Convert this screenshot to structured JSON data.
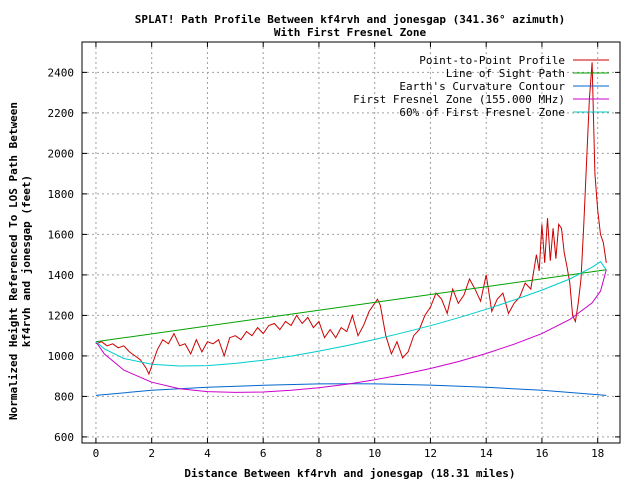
{
  "chart_data": {
    "type": "line",
    "title": "SPLAT! Path Profile Between kf4rvh and jonesgap (341.36° azimuth)",
    "subtitle": "With First Fresnel Zone",
    "xlabel": "Distance Between kf4rvh and jonesgap (18.31 miles)",
    "ylabel": "Normalized Height Referenced To LOS Path Between",
    "ylabel2": "kf4rvh and jonesgap (feet)",
    "xlim": [
      -0.5,
      18.8
    ],
    "ylim": [
      570,
      2550
    ],
    "x_ticks": [
      "0",
      "2",
      "4",
      "6",
      "8",
      "10",
      "12",
      "14",
      "16",
      "18"
    ],
    "y_ticks": [
      "600",
      "800",
      "1000",
      "1200",
      "1400",
      "1600",
      "1800",
      "2000",
      "2200",
      "2400"
    ],
    "grid": true,
    "legend_position": "top-right",
    "series": [
      {
        "name": "Point-to-Point Profile",
        "color": "#cc0000",
        "x": [
          0,
          0.2,
          0.4,
          0.6,
          0.8,
          1.0,
          1.2,
          1.4,
          1.6,
          1.8,
          1.9,
          2.0,
          2.2,
          2.4,
          2.6,
          2.8,
          3.0,
          3.2,
          3.4,
          3.6,
          3.8,
          4.0,
          4.2,
          4.4,
          4.6,
          4.8,
          5.0,
          5.2,
          5.4,
          5.6,
          5.8,
          6.0,
          6.2,
          6.4,
          6.6,
          6.8,
          7.0,
          7.2,
          7.4,
          7.6,
          7.8,
          8.0,
          8.2,
          8.4,
          8.6,
          8.8,
          9.0,
          9.2,
          9.4,
          9.6,
          9.8,
          10.0,
          10.1,
          10.2,
          10.4,
          10.6,
          10.8,
          11.0,
          11.2,
          11.4,
          11.6,
          11.8,
          12.0,
          12.2,
          12.4,
          12.6,
          12.8,
          13.0,
          13.2,
          13.4,
          13.6,
          13.8,
          14.0,
          14.2,
          14.4,
          14.6,
          14.8,
          15.0,
          15.2,
          15.4,
          15.6,
          15.8,
          15.9,
          16.0,
          16.1,
          16.2,
          16.3,
          16.4,
          16.5,
          16.6,
          16.7,
          16.8,
          16.9,
          17.0,
          17.1,
          17.2,
          17.3,
          17.4,
          17.5,
          17.6,
          17.7,
          17.8,
          17.9,
          18.0,
          18.1,
          18.2,
          18.31
        ],
        "y": [
          1060,
          1070,
          1050,
          1060,
          1040,
          1050,
          1020,
          1000,
          980,
          940,
          910,
          950,
          1030,
          1080,
          1060,
          1110,
          1050,
          1060,
          1010,
          1080,
          1020,
          1070,
          1060,
          1080,
          1000,
          1090,
          1100,
          1080,
          1120,
          1100,
          1140,
          1110,
          1150,
          1160,
          1130,
          1170,
          1150,
          1200,
          1160,
          1190,
          1140,
          1170,
          1090,
          1130,
          1090,
          1140,
          1120,
          1200,
          1100,
          1150,
          1220,
          1260,
          1280,
          1250,
          1100,
          1010,
          1070,
          990,
          1020,
          1100,
          1130,
          1200,
          1240,
          1310,
          1280,
          1210,
          1330,
          1260,
          1300,
          1380,
          1330,
          1270,
          1400,
          1220,
          1280,
          1310,
          1210,
          1260,
          1290,
          1360,
          1330,
          1500,
          1420,
          1650,
          1460,
          1680,
          1470,
          1630,
          1480,
          1650,
          1630,
          1510,
          1440,
          1360,
          1200,
          1170,
          1260,
          1380,
          1650,
          1950,
          2260,
          2450,
          1900,
          1720,
          1600,
          1560,
          1460
        ]
      },
      {
        "name": "Line of Sight Path",
        "color": "#00a000",
        "x": [
          0,
          18.31
        ],
        "y": [
          1070,
          1425
        ]
      },
      {
        "name": "Earth's Curvature Contour",
        "color": "#0066cc",
        "x": [
          0,
          2,
          4,
          6,
          8,
          9.15,
          10,
          12,
          14,
          16,
          18.31
        ],
        "y": [
          805,
          830,
          845,
          855,
          862,
          863,
          862,
          856,
          845,
          830,
          805
        ]
      },
      {
        "name": "First Fresnel Zone (155.000 MHz)",
        "color": "#cc00cc",
        "x": [
          0,
          0.3,
          1,
          2,
          3,
          4,
          5,
          6,
          7,
          8,
          9,
          10,
          11,
          12,
          13,
          14,
          15,
          16,
          17,
          17.8,
          18.1,
          18.31
        ],
        "y": [
          1070,
          1010,
          930,
          870,
          838,
          824,
          820,
          822,
          830,
          843,
          860,
          882,
          908,
          938,
          972,
          1012,
          1058,
          1110,
          1180,
          1262,
          1320,
          1425
        ]
      },
      {
        "name": "60% of First Fresnel Zone",
        "color": "#00cccc",
        "x": [
          0,
          0.3,
          1,
          2,
          3,
          4,
          5,
          6,
          7,
          8,
          9,
          10,
          11,
          12,
          13,
          14,
          15,
          16,
          17,
          17.8,
          18.1,
          18.31
        ],
        "y": [
          1070,
          1035,
          987,
          959,
          950,
          952,
          963,
          979,
          999,
          1024,
          1051,
          1081,
          1114,
          1149,
          1188,
          1230,
          1276,
          1325,
          1380,
          1438,
          1465,
          1425
        ]
      }
    ]
  }
}
